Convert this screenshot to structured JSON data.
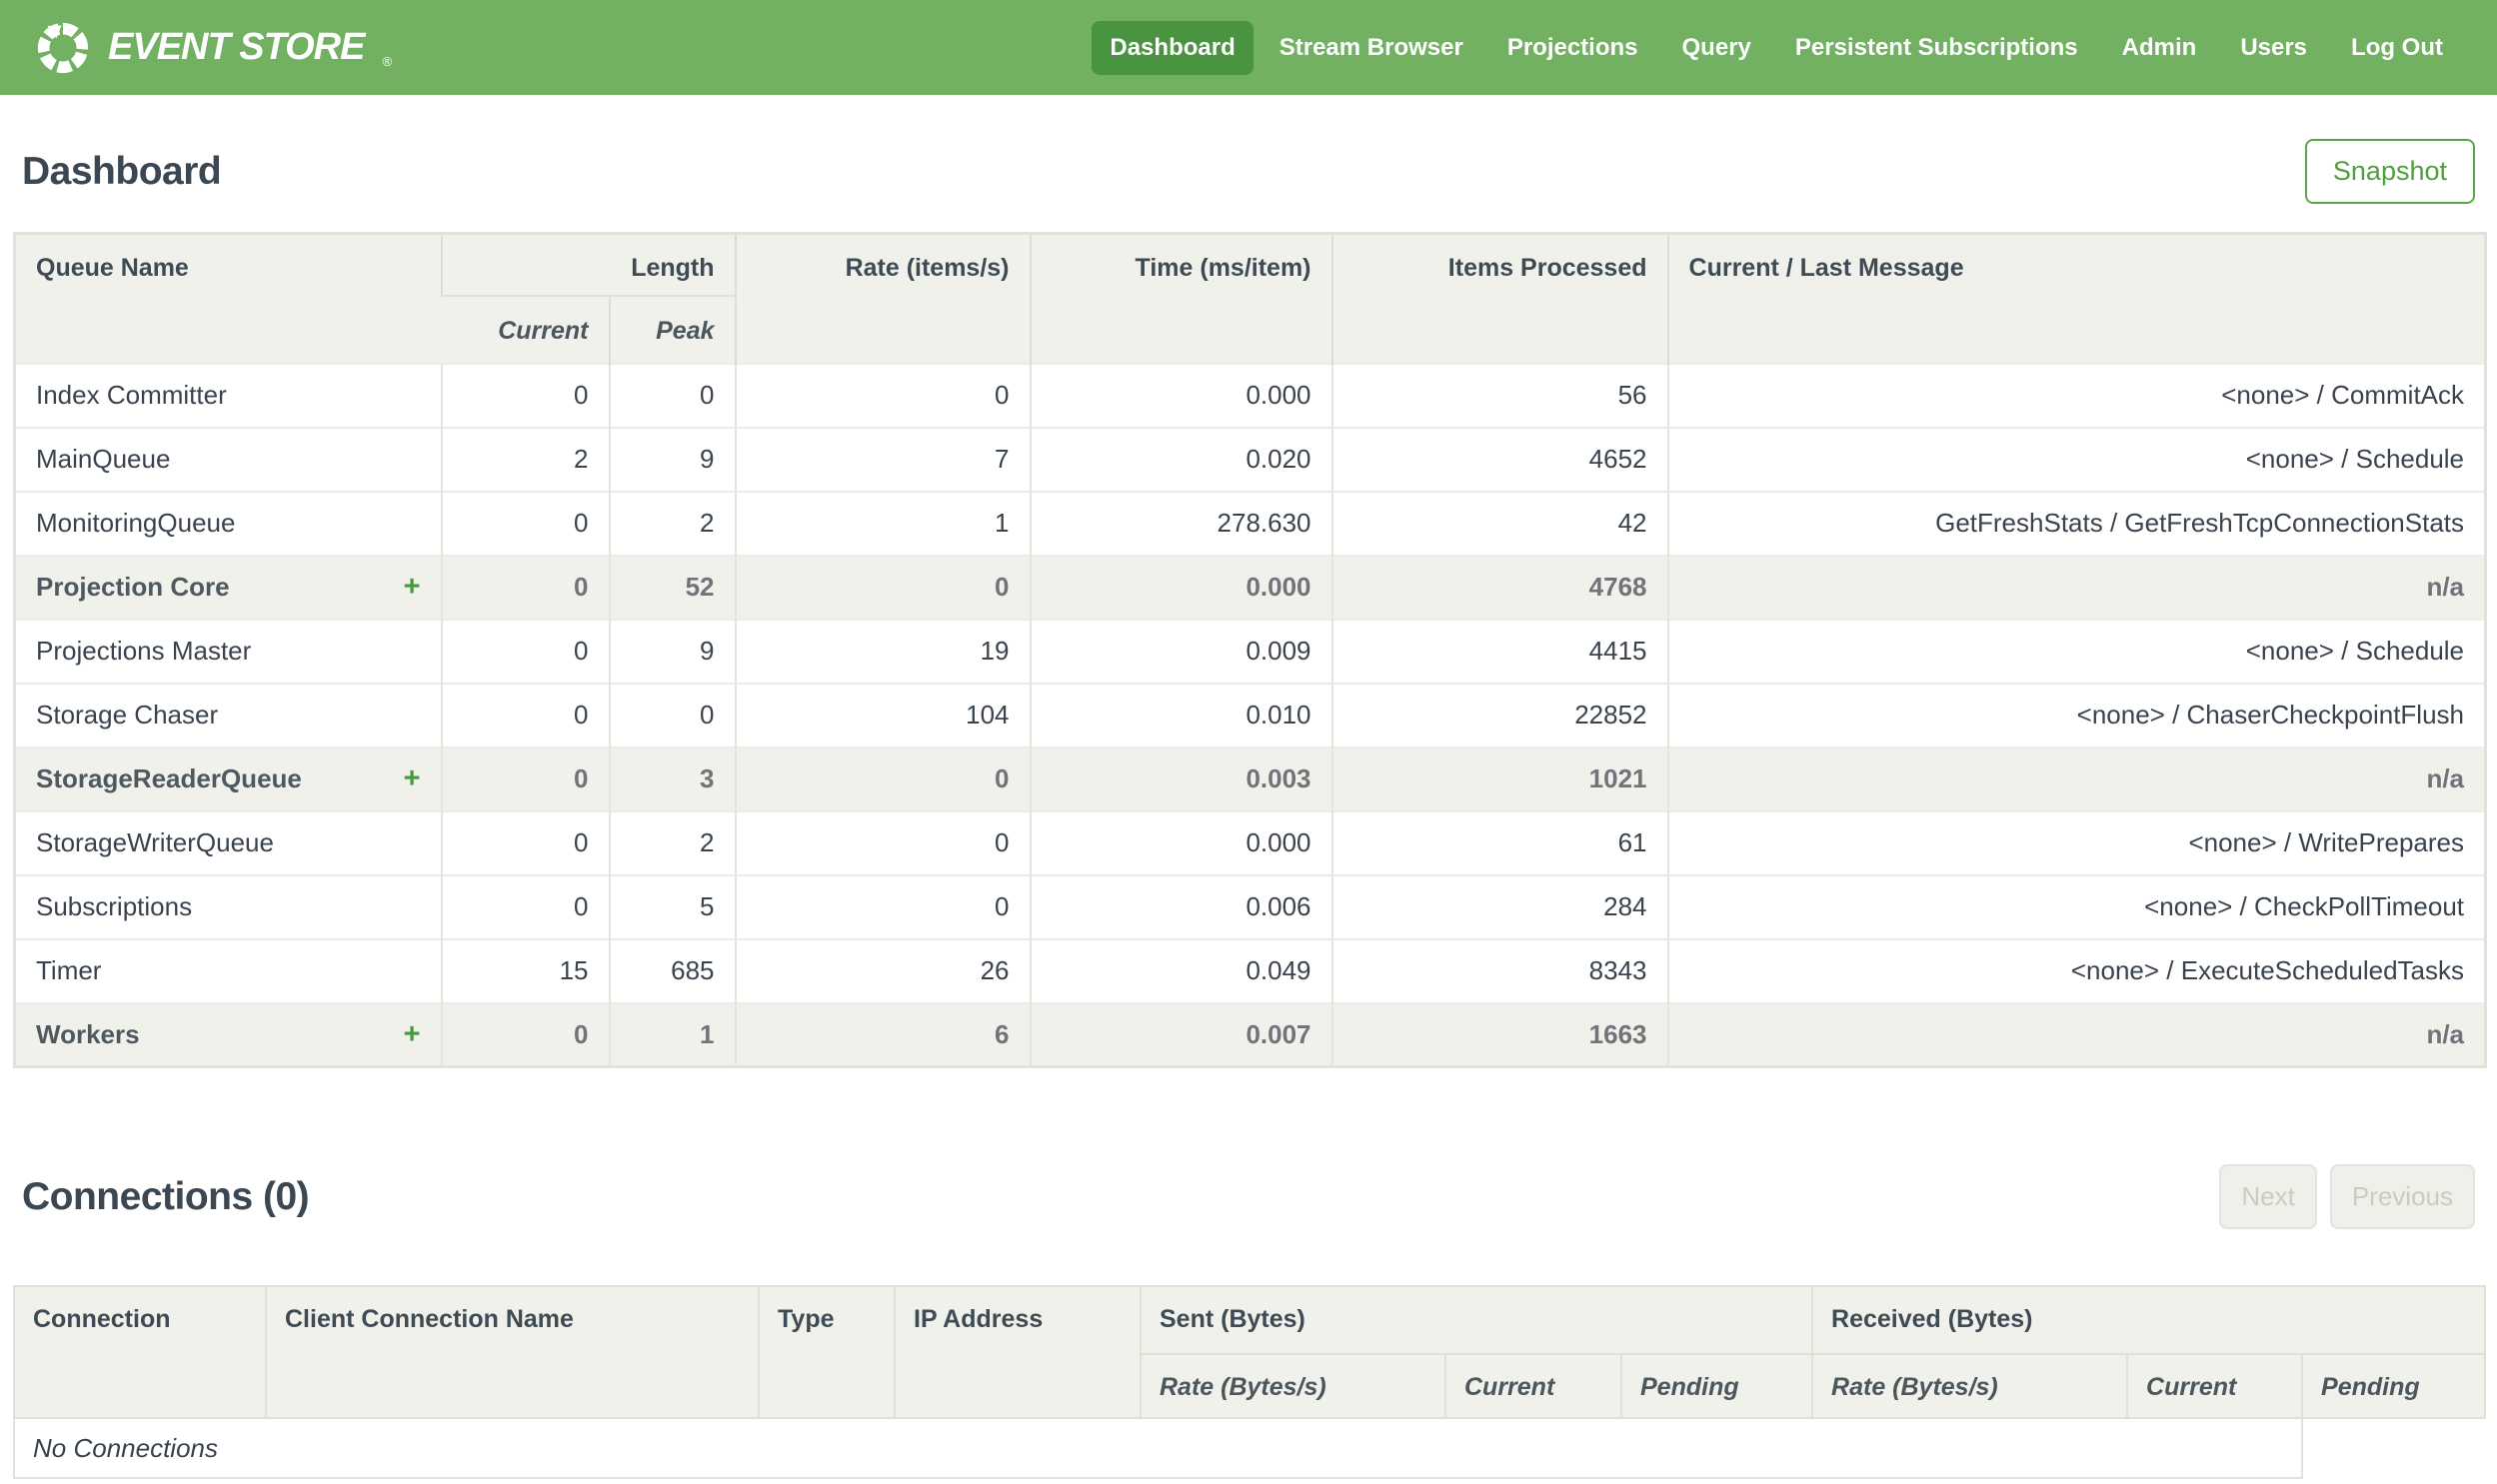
{
  "nav": {
    "brand": "EVENT STORE",
    "registered_mark": "®",
    "items": [
      {
        "label": "Dashboard",
        "active": true
      },
      {
        "label": "Stream Browser",
        "active": false
      },
      {
        "label": "Projections",
        "active": false
      },
      {
        "label": "Query",
        "active": false
      },
      {
        "label": "Persistent Subscriptions",
        "active": false
      },
      {
        "label": "Admin",
        "active": false
      },
      {
        "label": "Users",
        "active": false
      },
      {
        "label": "Log Out",
        "active": false
      }
    ]
  },
  "page": {
    "title": "Dashboard",
    "snapshot_label": "Snapshot"
  },
  "queue_table": {
    "headers": {
      "queue_name": "Queue Name",
      "length": "Length",
      "current": "Current",
      "peak": "Peak",
      "rate": "Rate (items/s)",
      "time": "Time (ms/item)",
      "items_processed": "Items Processed",
      "message": "Current / Last Message"
    },
    "expand_symbol": "+",
    "rows": [
      {
        "name": "Index Committer",
        "expandable": false,
        "emphasized": false,
        "current": "0",
        "peak": "0",
        "rate": "0",
        "time": "0.000",
        "items": "56",
        "message": "<none> / CommitAck"
      },
      {
        "name": "MainQueue",
        "expandable": false,
        "emphasized": false,
        "current": "2",
        "peak": "9",
        "rate": "7",
        "time": "0.020",
        "items": "4652",
        "message": "<none> / Schedule"
      },
      {
        "name": "MonitoringQueue",
        "expandable": false,
        "emphasized": false,
        "current": "0",
        "peak": "2",
        "rate": "1",
        "time": "278.630",
        "items": "42",
        "message": "GetFreshStats / GetFreshTcpConnectionStats"
      },
      {
        "name": "Projection Core",
        "expandable": true,
        "emphasized": true,
        "current": "0",
        "peak": "52",
        "rate": "0",
        "time": "0.000",
        "items": "4768",
        "message": "n/a"
      },
      {
        "name": "Projections Master",
        "expandable": false,
        "emphasized": false,
        "current": "0",
        "peak": "9",
        "rate": "19",
        "time": "0.009",
        "items": "4415",
        "message": "<none> / Schedule"
      },
      {
        "name": "Storage Chaser",
        "expandable": false,
        "emphasized": false,
        "current": "0",
        "peak": "0",
        "rate": "104",
        "time": "0.010",
        "items": "22852",
        "message": "<none> / ChaserCheckpointFlush"
      },
      {
        "name": "StorageReaderQueue",
        "expandable": true,
        "emphasized": true,
        "current": "0",
        "peak": "3",
        "rate": "0",
        "time": "0.003",
        "items": "1021",
        "message": "n/a"
      },
      {
        "name": "StorageWriterQueue",
        "expandable": false,
        "emphasized": false,
        "current": "0",
        "peak": "2",
        "rate": "0",
        "time": "0.000",
        "items": "61",
        "message": "<none> / WritePrepares"
      },
      {
        "name": "Subscriptions",
        "expandable": false,
        "emphasized": false,
        "current": "0",
        "peak": "5",
        "rate": "0",
        "time": "0.006",
        "items": "284",
        "message": "<none> / CheckPollTimeout"
      },
      {
        "name": "Timer",
        "expandable": false,
        "emphasized": false,
        "current": "15",
        "peak": "685",
        "rate": "26",
        "time": "0.049",
        "items": "8343",
        "message": "<none> / ExecuteScheduledTasks"
      },
      {
        "name": "Workers",
        "expandable": true,
        "emphasized": true,
        "current": "0",
        "peak": "1",
        "rate": "6",
        "time": "0.007",
        "items": "1663",
        "message": "n/a"
      }
    ]
  },
  "connections": {
    "title": "Connections (0)",
    "next_label": "Next",
    "previous_label": "Previous",
    "headers": {
      "connection": "Connection",
      "client_name": "Client Connection Name",
      "type": "Type",
      "ip": "IP Address",
      "sent": "Sent (Bytes)",
      "received": "Received (Bytes)",
      "rate": "Rate (Bytes/s)",
      "current": "Current",
      "pending": "Pending"
    },
    "empty_message": "No Connections"
  },
  "colors": {
    "navbar_green": "#71b161",
    "active_tab_green": "#4a9441",
    "accent_green": "#4f9f3f",
    "expand_plus_green": "#3f9c38",
    "table_header_bg": "#f0f1ea",
    "text_dark": "#39434e"
  }
}
